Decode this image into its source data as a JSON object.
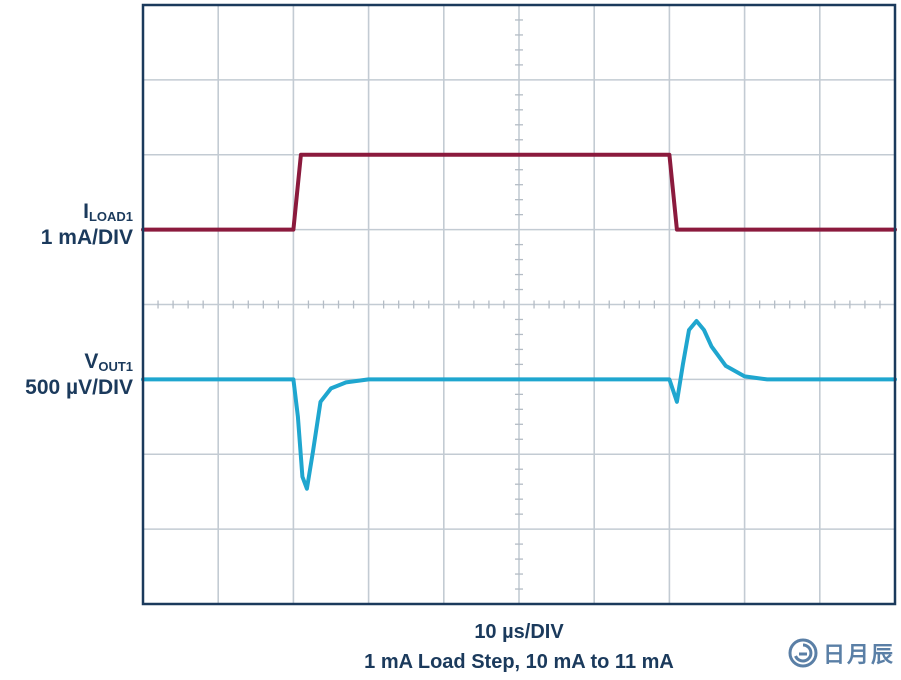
{
  "chart_data": {
    "type": "line",
    "title": "",
    "x_scale": "10 µs/DIV",
    "caption": "1 mA Load Step, 10 mA to 11 mA",
    "grid": true,
    "divisions": {
      "x": 10,
      "y": 8
    },
    "x_unit": "µs",
    "series": [
      {
        "name": "ILOAD1",
        "label_main": "I",
        "label_sub": "LOAD1",
        "scale": "1 mA/DIV",
        "color": "#8b1a3d",
        "x": [
          0,
          20,
          21,
          70,
          71,
          100
        ],
        "y": [
          10,
          10,
          11,
          11,
          10,
          10
        ],
        "unit": "mA"
      },
      {
        "name": "VOUT1",
        "label_main": "V",
        "label_sub": "OUT1",
        "scale": "500 µV/DIV",
        "color": "#1fa6cf",
        "x": [
          0,
          20,
          20.6,
          21.2,
          21.8,
          22.6,
          23.6,
          25,
          27,
          30,
          50,
          70,
          71,
          71.8,
          72.6,
          73.6,
          74.6,
          75.6,
          77.5,
          80,
          83,
          90,
          100
        ],
        "y": [
          0,
          0,
          -250,
          -650,
          -730,
          -480,
          -150,
          -60,
          -20,
          0,
          0,
          0,
          -150,
          100,
          330,
          390,
          330,
          220,
          90,
          20,
          0,
          0,
          0
        ],
        "unit": "µV"
      }
    ]
  },
  "logo": {
    "text": "日月辰",
    "icon": "spiral-logo-icon"
  }
}
